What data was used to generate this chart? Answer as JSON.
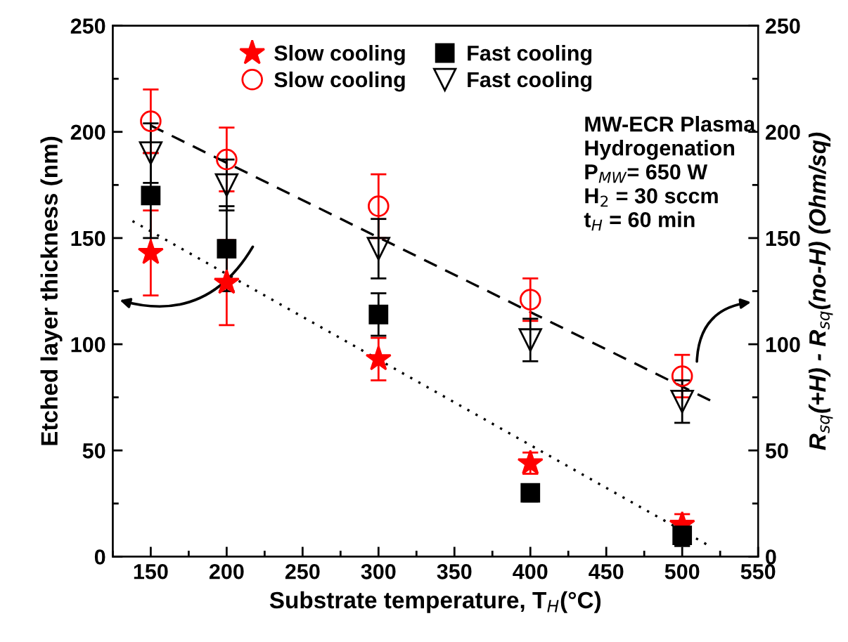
{
  "chart_data": {
    "type": "scatter",
    "xlabel": "Substrate temperature, T$_{H}$(°C)",
    "ylabel": "Etched layer thickness (nm)",
    "y2label": "R$_{sq}$(+H) - R$_{sq}$(no-H) (Ohm/sq)",
    "x": [
      150,
      200,
      300,
      400,
      500
    ],
    "series": [
      {
        "name": "Slow cooling",
        "color": "#ff0000",
        "marker": "star",
        "values": [
          143,
          129,
          93,
          44,
          15
        ],
        "errors": [
          20,
          20,
          10,
          5,
          5
        ]
      },
      {
        "name": "Slow cooling",
        "color": "#ff0000",
        "marker": "circle",
        "axis": "y2",
        "values": [
          205,
          187,
          165,
          121,
          85
        ],
        "errors": [
          15,
          15,
          15,
          10,
          10
        ]
      },
      {
        "name": "Fast cooling",
        "color": "#000000",
        "marker": "square",
        "values": [
          170,
          145,
          114,
          30,
          10
        ],
        "errors": [
          20,
          20,
          10,
          4,
          5
        ]
      },
      {
        "name": "Fast cooling",
        "color": "#000000",
        "marker": "triangle",
        "axis": "y2",
        "values": [
          190,
          175,
          145,
          102,
          73
        ],
        "errors": [
          14,
          12,
          14,
          10,
          10
        ]
      },
      {
        "type": "line",
        "color": "#000000",
        "marker": "none",
        "line_style": "dashed",
        "axis": "y2",
        "x": [
          150,
          520
        ],
        "values": [
          203,
          73
        ]
      },
      {
        "type": "line",
        "color": "#000000",
        "marker": "none",
        "line_style": "dotted",
        "x": [
          138,
          518
        ],
        "values": [
          158,
          5
        ]
      }
    ],
    "legend": "top",
    "annotations": [
      "MW-ECR Plasma\nHydrogenation\nP$_{MW}$= 650 W\nH$_{2}$ = 30 sccm\nt$_{H}$ = 60 min"
    ],
    "xlim": [
      125,
      550
    ],
    "xticks": [
      {
        "value": 125,
        "label": null
      },
      150,
      {
        "value": 175,
        "label": null
      },
      200,
      {
        "value": 225,
        "label": null
      },
      250,
      {
        "value": 275,
        "label": null
      },
      300,
      {
        "value": 325,
        "label": null
      },
      350,
      {
        "value": 375,
        "label": null
      },
      400,
      {
        "value": 425,
        "label": null
      },
      450,
      {
        "value": 475,
        "label": null
      },
      500,
      {
        "value": 525,
        "label": null
      },
      550
    ],
    "ylim": [
      0,
      250
    ],
    "yticks": [
      0,
      {
        "value": 25,
        "label": null
      },
      50,
      {
        "value": 75,
        "label": null
      },
      100,
      {
        "value": 125,
        "label": null
      },
      150,
      {
        "value": 175,
        "label": null
      },
      200,
      {
        "value": 225,
        "label": null
      },
      250
    ],
    "y2lim": [
      0,
      250
    ],
    "y2ticks": [
      0,
      {
        "value": 25,
        "label": null
      },
      50,
      {
        "value": 75,
        "label": null
      },
      100,
      {
        "value": 125,
        "label": null
      },
      150,
      {
        "value": 175,
        "label": null
      },
      200,
      {
        "value": 225,
        "label": null
      },
      250
    ],
    "grid": false
  }
}
